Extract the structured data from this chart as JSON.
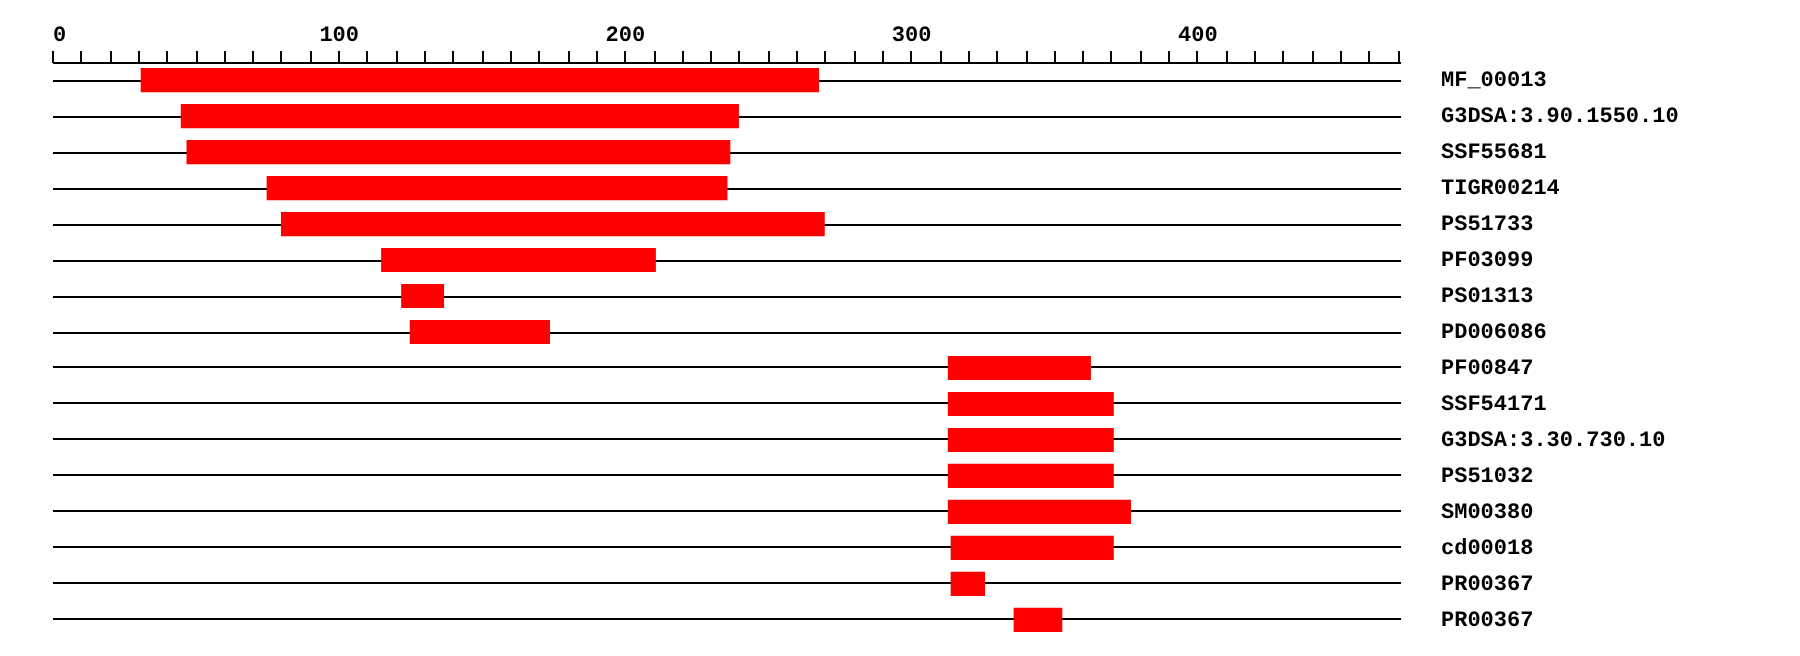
{
  "chart_data": {
    "type": "bar",
    "orientation": "horizontal",
    "categories": [
      "MF_00013",
      "G3DSA:3.90.1550.10",
      "SSF55681",
      "TIGR00214",
      "PS51733",
      "PF03099",
      "PS01313",
      "PD006086",
      "PF00847",
      "SSF54171",
      "G3DSA:3.30.730.10",
      "PS51032",
      "SM00380",
      "cd00018",
      "PR00367",
      "PR00367"
    ],
    "base": [
      31,
      45,
      47,
      75,
      80,
      115,
      122,
      125,
      313,
      313,
      313,
      313,
      313,
      314,
      314,
      336
    ],
    "values": [
      237,
      195,
      190,
      161,
      190,
      96,
      15,
      49,
      50,
      58,
      58,
      58,
      64,
      57,
      12,
      17
    ],
    "color": "#ff0000",
    "xlim": [
      0,
      471
    ],
    "xticks": [
      0,
      {
        "value": 10,
        "label": null
      },
      {
        "value": 20,
        "label": null
      },
      {
        "value": 30,
        "label": null
      },
      {
        "value": 40,
        "label": null
      },
      {
        "value": 50,
        "label": null
      },
      {
        "value": 60,
        "label": null
      },
      {
        "value": 70,
        "label": null
      },
      {
        "value": 80,
        "label": null
      },
      {
        "value": 90,
        "label": null
      },
      100,
      {
        "value": 110,
        "label": null
      },
      {
        "value": 120,
        "label": null
      },
      {
        "value": 130,
        "label": null
      },
      {
        "value": 140,
        "label": null
      },
      {
        "value": 150,
        "label": null
      },
      {
        "value": 160,
        "label": null
      },
      {
        "value": 170,
        "label": null
      },
      {
        "value": 180,
        "label": null
      },
      {
        "value": 190,
        "label": null
      },
      200,
      {
        "value": 210,
        "label": null
      },
      {
        "value": 220,
        "label": null
      },
      {
        "value": 230,
        "label": null
      },
      {
        "value": 240,
        "label": null
      },
      {
        "value": 250,
        "label": null
      },
      {
        "value": 260,
        "label": null
      },
      {
        "value": 270,
        "label": null
      },
      {
        "value": 280,
        "label": null
      },
      {
        "value": 290,
        "label": null
      },
      300,
      {
        "value": 310,
        "label": null
      },
      {
        "value": 320,
        "label": null
      },
      {
        "value": 330,
        "label": null
      },
      {
        "value": 340,
        "label": null
      },
      {
        "value": 350,
        "label": null
      },
      {
        "value": 360,
        "label": null
      },
      {
        "value": 370,
        "label": null
      },
      {
        "value": 380,
        "label": null
      },
      {
        "value": 390,
        "label": null
      },
      400,
      {
        "value": 410,
        "label": null
      },
      {
        "value": 420,
        "label": null
      },
      {
        "value": 430,
        "label": null
      },
      {
        "value": 440,
        "label": null
      },
      {
        "value": 450,
        "label": null
      },
      {
        "value": 460,
        "label": null
      },
      {
        "value": 470,
        "label": null
      }
    ],
    "grid": "y"
  }
}
